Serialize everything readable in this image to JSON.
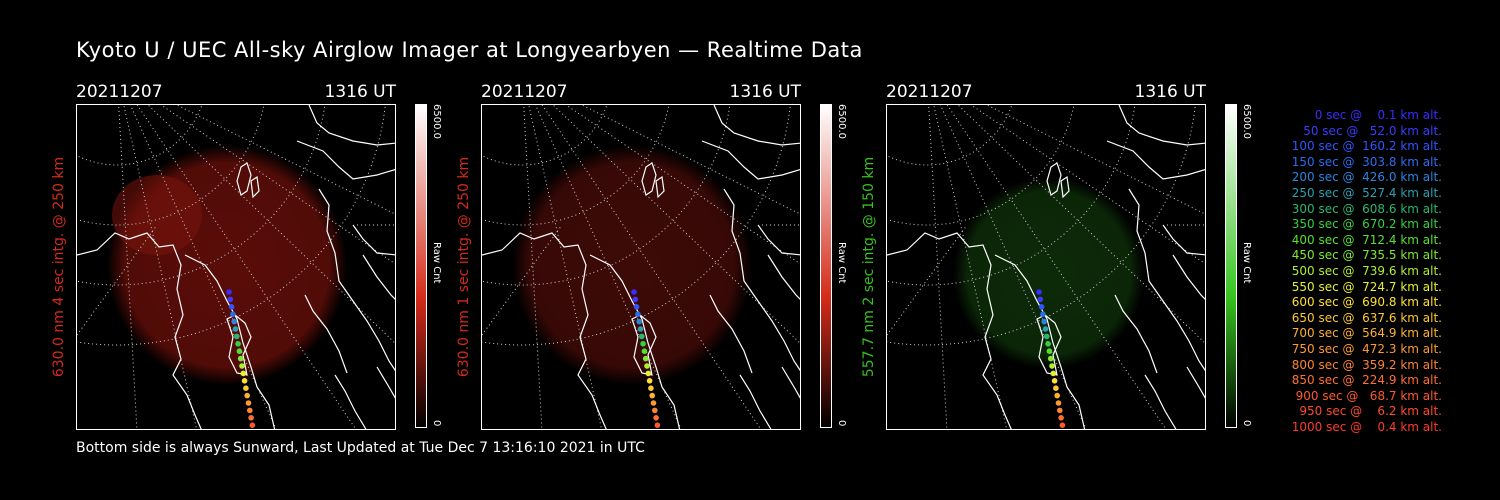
{
  "title": "Kyoto U / UEC All-sky Airglow Imager at Longyearbyen — Realtime Data",
  "footer": "Bottom side is always Sunward, Last Updated at Tue Dec  7 13:16:10 2021 in UTC",
  "panels": [
    {
      "date": "20211207",
      "time": "1316 UT",
      "ylabel": "630.0 nm 4 sec intg. @ 250 km",
      "color": "#d42a1a",
      "glow": "#5a0d08",
      "cbar_max": "6500.0",
      "cbar_min": "0",
      "cbar_unit": "Raw Cnt"
    },
    {
      "date": "20211207",
      "time": "1316 UT",
      "ylabel": "630.0 nm 1 sec intg. @ 250 km",
      "color": "#d42a1a",
      "glow": "#3d0a07",
      "cbar_max": "6500.0",
      "cbar_min": "0",
      "cbar_unit": "Raw Cnt"
    },
    {
      "date": "20211207",
      "time": "1316 UT",
      "ylabel": "557.7 nm 2 sec intg. @ 150 km",
      "color": "#35c21e",
      "glow": "#0c2a08",
      "cbar_max": "6500.0",
      "cbar_min": "0",
      "cbar_unit": "Raw Cnt"
    }
  ],
  "legend": [
    {
      "text": "0 sec @    0.1 km alt.",
      "color": "#3a2cff"
    },
    {
      "text": "50 sec @   52.0 km alt.",
      "color": "#3a3cff"
    },
    {
      "text": "100 sec @  160.2 km alt.",
      "color": "#2f55ff"
    },
    {
      "text": "150 sec @  303.8 km alt.",
      "color": "#2a6cf0"
    },
    {
      "text": "200 sec @  426.0 km alt.",
      "color": "#2a85e0"
    },
    {
      "text": "250 sec @  527.4 km alt.",
      "color": "#2aa0b0"
    },
    {
      "text": "300 sec @  608.6 km alt.",
      "color": "#2ab870"
    },
    {
      "text": "350 sec @  670.2 km alt.",
      "color": "#34d040"
    },
    {
      "text": "400 sec @  712.4 km alt.",
      "color": "#55e030"
    },
    {
      "text": "450 sec @  735.5 km alt.",
      "color": "#80e830"
    },
    {
      "text": "500 sec @  739.6 km alt.",
      "color": "#b0ee30"
    },
    {
      "text": "550 sec @  724.7 km alt.",
      "color": "#e4f030"
    },
    {
      "text": "600 sec @  690.8 km alt.",
      "color": "#ffe030"
    },
    {
      "text": "650 sec @  637.6 km alt.",
      "color": "#ffc830"
    },
    {
      "text": "700 sec @  564.9 km alt.",
      "color": "#ffb030"
    },
    {
      "text": "750 sec @  472.3 km alt.",
      "color": "#ff9a30"
    },
    {
      "text": "800 sec @  359.2 km alt.",
      "color": "#ff8430"
    },
    {
      "text": "850 sec @  224.9 km alt.",
      "color": "#ff7030"
    },
    {
      "text": "900 sec @   68.7 km alt.",
      "color": "#ff5a2a"
    },
    {
      "text": "950 sec @    6.2 km alt.",
      "color": "#ff4a2a"
    },
    {
      "text": "1000 sec @    0.4 km alt.",
      "color": "#ff3a2a"
    }
  ]
}
